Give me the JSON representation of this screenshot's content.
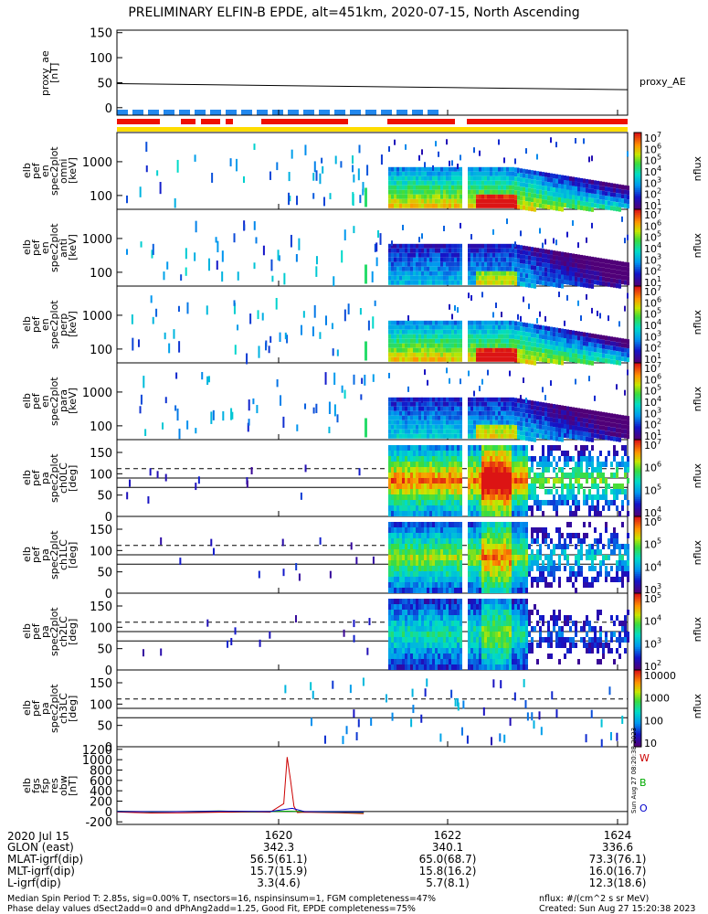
{
  "title": "PRELIMINARY ELFIN-B EPDE, alt=451km, 2020-07-15, North Ascending",
  "chart_data": [
    {
      "type": "line",
      "panel": "proxy_ae",
      "ylabel": [
        "proxy_ae",
        "[nT]"
      ],
      "yticks": [
        "150",
        "100",
        "50",
        "0"
      ],
      "ylim": [
        -15,
        155
      ],
      "series": [
        {
          "name": "proxy_AE",
          "x_minutes": [
            0,
            10,
            20,
            30
          ],
          "values": [
            48,
            44,
            40,
            36
          ]
        }
      ]
    },
    {
      "type": "heatmap",
      "panel": "elb_pef_en_spec2plot_omni",
      "ylabel": [
        "elb",
        "pef",
        "en",
        "spec2plot",
        "omni",
        "[keV]"
      ],
      "yscale": "log",
      "yticks": [
        "1000",
        "100"
      ],
      "colorbar": {
        "title": "nflux",
        "ticks": [
          "10^7",
          "10^6",
          "10^5",
          "10^4",
          "10^3",
          "10^2",
          "10^1"
        ]
      }
    },
    {
      "type": "heatmap",
      "panel": "elb_pef_en_spec2plot_anti",
      "ylabel": [
        "elb",
        "pef",
        "en",
        "spec2plot",
        "anti",
        "[keV]"
      ],
      "yscale": "log",
      "yticks": [
        "1000",
        "100"
      ],
      "colorbar": {
        "title": "nflux",
        "ticks": [
          "10^7",
          "10^6",
          "10^5",
          "10^4",
          "10^3",
          "10^2",
          "10^1"
        ]
      }
    },
    {
      "type": "heatmap",
      "panel": "elb_pef_en_spec2plot_perp",
      "ylabel": [
        "elb",
        "pef",
        "en",
        "spec2plot",
        "perp",
        "[keV]"
      ],
      "yscale": "log",
      "yticks": [
        "1000",
        "100"
      ],
      "colorbar": {
        "title": "nflux",
        "ticks": [
          "10^7",
          "10^6",
          "10^5",
          "10^4",
          "10^3",
          "10^2",
          "10^1"
        ]
      }
    },
    {
      "type": "heatmap",
      "panel": "elb_pef_en_spec2plot_para",
      "ylabel": [
        "elb",
        "pef",
        "en",
        "spec2plot",
        "para",
        "[keV]"
      ],
      "yscale": "log",
      "yticks": [
        "1000",
        "100"
      ],
      "colorbar": {
        "title": "nflux",
        "ticks": [
          "10^7",
          "10^6",
          "10^5",
          "10^4",
          "10^3",
          "10^2",
          "10^1"
        ]
      }
    },
    {
      "type": "heatmap",
      "panel": "elb_pef_pa_spec2plot_ch0LC",
      "ylabel": [
        "elb",
        "pef",
        "pa",
        "spec2plot",
        "ch0LC",
        "[deg]"
      ],
      "yticks": [
        "150",
        "100",
        "50",
        "0"
      ],
      "ylim": [
        0,
        180
      ],
      "colorbar": {
        "title": "nflux",
        "ticks": [
          "10^7",
          "10^6",
          "10^5",
          "10^4"
        ]
      }
    },
    {
      "type": "heatmap",
      "panel": "elb_pef_pa_spec2plot_ch1LC",
      "ylabel": [
        "elb",
        "pef",
        "pa",
        "spec2plot",
        "ch1LC",
        "[deg]"
      ],
      "yticks": [
        "150",
        "100",
        "50",
        "0"
      ],
      "ylim": [
        0,
        180
      ],
      "colorbar": {
        "title": "nflux",
        "ticks": [
          "10^6",
          "10^5",
          "10^4",
          "10^3"
        ]
      }
    },
    {
      "type": "heatmap",
      "panel": "elb_pef_pa_spec2plot_ch2LC",
      "ylabel": [
        "elb",
        "pef",
        "pa",
        "spec2plot",
        "ch2LC",
        "[deg]"
      ],
      "yticks": [
        "150",
        "100",
        "50",
        "0"
      ],
      "ylim": [
        0,
        180
      ],
      "colorbar": {
        "title": "nflux",
        "ticks": [
          "10^5",
          "10^4",
          "10^3",
          "10^2"
        ]
      }
    },
    {
      "type": "heatmap",
      "panel": "elb_pef_pa_spec2plot_ch3LC",
      "ylabel": [
        "elb",
        "pef",
        "pa",
        "spec2plot",
        "ch3LC",
        "[deg]"
      ],
      "yticks": [
        "150",
        "100",
        "50",
        "0"
      ],
      "ylim": [
        0,
        180
      ],
      "colorbar": {
        "title": "nflux",
        "ticks": [
          "10000",
          "1000",
          "100",
          "10"
        ]
      }
    },
    {
      "type": "line",
      "panel": "elb_fgs_fsp_res_obw",
      "ylabel": [
        "elb",
        "fgs",
        "fsp",
        "res",
        "obw",
        "[nT]"
      ],
      "yticks": [
        "1200",
        "1000",
        "800",
        "600",
        "400",
        "200",
        "0",
        "-200"
      ],
      "ylim": [
        -250,
        1250
      ],
      "series": [
        {
          "name": "W",
          "color": "#cc0000",
          "x_minutes": [
            0,
            2,
            4,
            6,
            8,
            9,
            9.8,
            10.0,
            10.2,
            10.4,
            10.6,
            11,
            13,
            14.5
          ],
          "values": [
            -10,
            -30,
            -25,
            -15,
            -10,
            -15,
            150,
            1050,
            600,
            100,
            -20,
            -15,
            -25,
            -40
          ]
        },
        {
          "name": "B",
          "color": "#00aa00",
          "x_minutes": [
            0,
            2,
            4,
            6,
            8,
            10,
            12,
            14.5
          ],
          "values": [
            5,
            -10,
            0,
            10,
            -5,
            5,
            -10,
            -20
          ]
        },
        {
          "name": "O",
          "color": "#0000cc",
          "x_minutes": [
            0,
            3,
            6,
            9,
            10.3,
            11,
            14.5
          ],
          "values": [
            0,
            -5,
            5,
            0,
            60,
            0,
            -10
          ]
        }
      ],
      "side_stamp": "Sun Aug 27 08:20:38 2023"
    }
  ],
  "right_labels": {
    "proxy": "proxy_AE",
    "w": "W",
    "b": "B",
    "o": "O",
    "nflux": "nflux"
  },
  "xaxis": {
    "row_labels": [
      "2020 Jul 15",
      "GLON (east)",
      "MLAT-igrf(dip)",
      "MLT-igrf(dip)",
      "L-igrf(dip)"
    ],
    "ticks": [
      {
        "time": "1620",
        "glon": "342.3",
        "mlat": "56.5(61.1)",
        "mlt": "15.7(15.9)",
        "l": "3.3(4.6)"
      },
      {
        "time": "1622",
        "glon": "340.1",
        "mlat": "65.0(68.7)",
        "mlt": "15.8(16.2)",
        "l": "5.7(8.1)"
      },
      {
        "time": "1624",
        "glon": "336.6",
        "mlat": "73.3(76.1)",
        "mlt": "16.0(16.7)",
        "l": "12.3(18.6)"
      }
    ]
  },
  "footer": {
    "line1": "Median Spin Period T: 2.85s, sig=0.00% T, nsectors=16, nspinsinsum=1, FGM completeness=47%",
    "line2": "Phase delay values dSect2add=0 and dPhAng2add=1.25, Good Fit, EPDE completeness=75%",
    "units": "nflux: #/(cm^2 s sr MeV)",
    "created": "Created: Sun Aug 27 15:20:38 2023"
  }
}
